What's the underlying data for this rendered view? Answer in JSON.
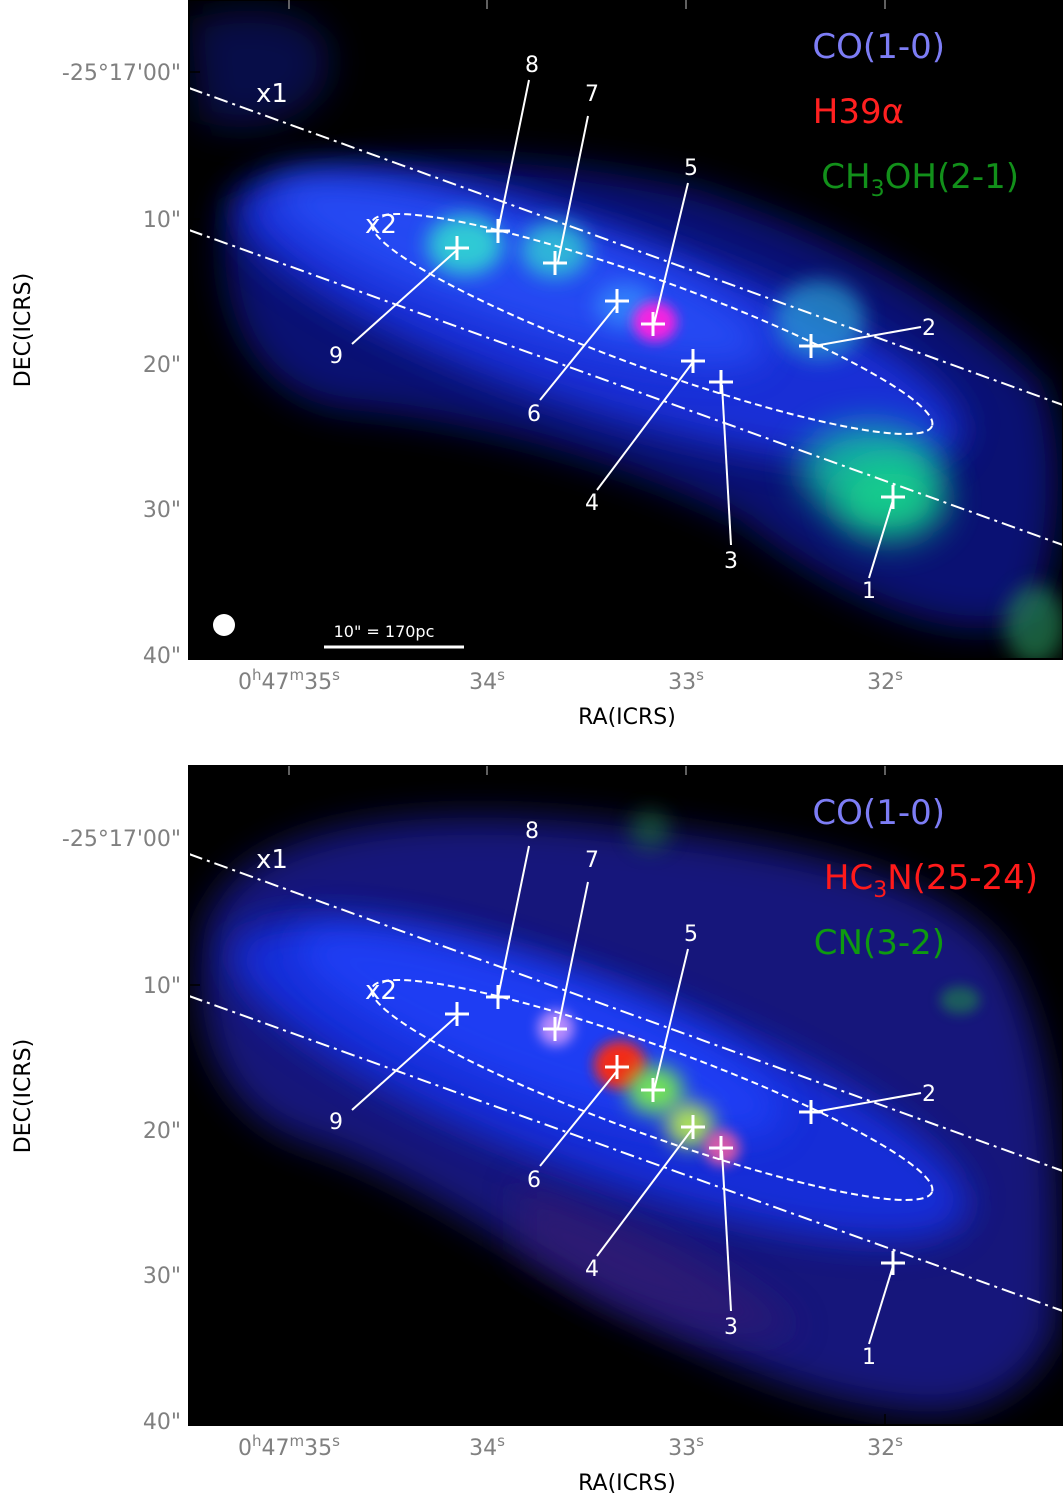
{
  "colors": {
    "co": "#7d7df5",
    "h39": "#ff2020",
    "ch3oh": "#12901a",
    "hc3n": "#ff1a1a",
    "cn": "#0e9a10",
    "tick_label": "#808080"
  },
  "axes": {
    "ylabel": "DEC(ICRS)",
    "xlabel": "RA(ICRS)",
    "dec_ticks": [
      "-25°17'00\"",
      "10\"",
      "20\"",
      "30\"",
      "40\""
    ],
    "ra_first": {
      "base": "0",
      "h": "h",
      "mid": "47",
      "m": "m",
      "end": "35",
      "s": "s"
    },
    "ra_ticks": [
      {
        "num": "34",
        "sup": "s"
      },
      {
        "num": "33",
        "sup": "s"
      },
      {
        "num": "32",
        "sup": "s"
      }
    ]
  },
  "panels": [
    {
      "legend": [
        {
          "text": "CO(1-0)",
          "color_key": "co"
        },
        {
          "text": "H39α",
          "color_key": "h39"
        },
        {
          "pre": "CH",
          "sub": "3",
          "post": "OH(2-1)",
          "color_key": "ch3oh"
        }
      ],
      "scale_bar": "10\" = 170pc",
      "has_beam": true
    },
    {
      "legend": [
        {
          "text": "CO(1-0)",
          "color_key": "co"
        },
        {
          "pre": "HC",
          "sub": "3",
          "post": "N(25-24)",
          "color_key": "hc3n"
        },
        {
          "text": "CN(3-2)",
          "color_key": "cn"
        }
      ],
      "scale_bar": "",
      "has_beam": false
    }
  ],
  "orbit_labels": [
    "x1",
    "x2"
  ],
  "positions": [
    "1",
    "2",
    "3",
    "4",
    "5",
    "6",
    "7",
    "8",
    "9"
  ]
}
